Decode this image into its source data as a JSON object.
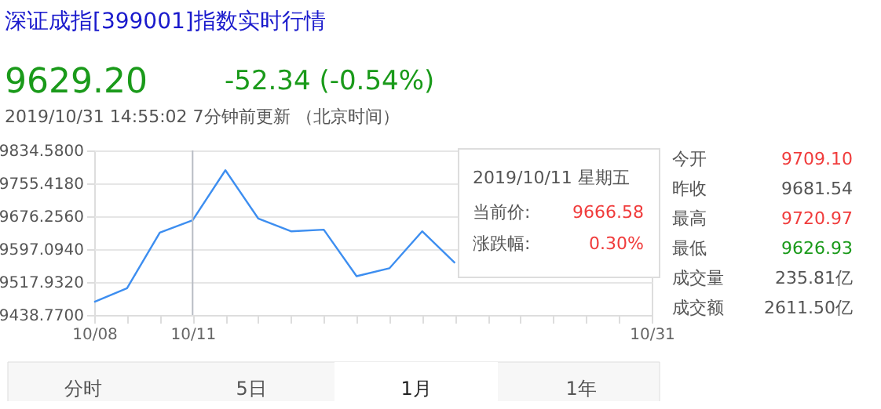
{
  "chart_data": {
    "type": "line",
    "title": "深证成指[399001]指数实时行情",
    "categories": [
      "10/08",
      null,
      null,
      "10/11",
      null,
      null,
      null,
      null,
      null,
      null,
      null,
      null,
      null,
      null,
      null,
      null,
      null,
      "10/31"
    ],
    "series": [
      {
        "color": "#3d8ef0",
        "values": [
          9470,
          9503,
          9637,
          9666.58,
          9787,
          9671,
          9640,
          9644,
          9532,
          9551,
          9640,
          9564,
          null,
          null,
          null,
          null,
          null,
          null
        ]
      }
    ],
    "ylim": [
      9438.77,
      9834.58
    ],
    "yticks": [
      {
        "value": 9438.77,
        "label": "9438.7700"
      },
      {
        "value": 9517.932,
        "label": "9517.9320"
      },
      {
        "value": 9597.094,
        "label": "9597.0940"
      },
      {
        "value": 9676.256,
        "label": "9676.2560"
      },
      {
        "value": 9755.418,
        "label": "9755.4180"
      },
      {
        "value": 9834.58,
        "label": "9834.5800"
      }
    ],
    "grid": "y",
    "marker": "none",
    "line_style": "solid",
    "ref_lines": [
      {
        "axis": "x",
        "value": "10/11",
        "color": "#b8bcc4"
      }
    ],
    "annotations": [
      "9629.20",
      "-52.34 (-0.54%)",
      "2019/10/31 14:55:02  7分钟前更新 （北京时间）",
      "2019/10/11 星期五",
      "当前价:",
      "9666.58",
      "涨跌幅:",
      "0.30%",
      "今开",
      "9709.10",
      "昨收",
      "9681.54",
      "最高",
      "9720.97",
      "最低",
      "9626.93",
      "成交量",
      "235.81亿",
      "成交额",
      "2611.50亿",
      "分时",
      "5日",
      "1月",
      "1年"
    ]
  }
}
